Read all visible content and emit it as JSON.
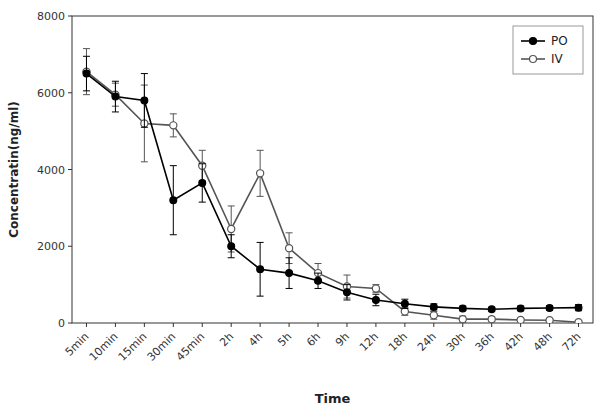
{
  "chart_data": {
    "type": "line",
    "xlabel": "Time",
    "ylabel": "Concentratin(ng/ml)",
    "categories": [
      "5min",
      "10min",
      "15min",
      "30min",
      "45min",
      "2h",
      "4h",
      "5h",
      "6h",
      "9h",
      "12h",
      "18h",
      "24h",
      "30h",
      "36h",
      "42h",
      "48h",
      "72h"
    ],
    "series": [
      {
        "name": "PO",
        "color": "#000000",
        "marker": "circle",
        "line_style": "solid",
        "values": [
          6500,
          5900,
          5800,
          3200,
          3650,
          2000,
          1400,
          1300,
          1100,
          800,
          600,
          500,
          420,
          380,
          360,
          380,
          390,
          400
        ],
        "yerr": [
          450,
          400,
          700,
          900,
          500,
          300,
          700,
          400,
          200,
          200,
          150,
          120,
          80,
          60,
          50,
          60,
          60,
          80
        ]
      },
      {
        "name": "IV",
        "color": "#555555",
        "marker": "open-circle",
        "line_style": "solid",
        "values": [
          6550,
          5950,
          5200,
          5150,
          4100,
          2450,
          3900,
          1950,
          1300,
          950,
          900,
          300,
          200,
          100,
          100,
          80,
          70,
          20
        ],
        "yerr": [
          600,
          300,
          1000,
          300,
          400,
          600,
          600,
          400,
          250,
          300,
          100,
          100,
          100,
          80,
          60,
          50,
          40,
          20
        ]
      }
    ],
    "ylim": [
      0,
      8000
    ],
    "yticks": [
      0,
      2000,
      4000,
      6000,
      8000
    ],
    "grid": false,
    "legend": "upper right"
  }
}
